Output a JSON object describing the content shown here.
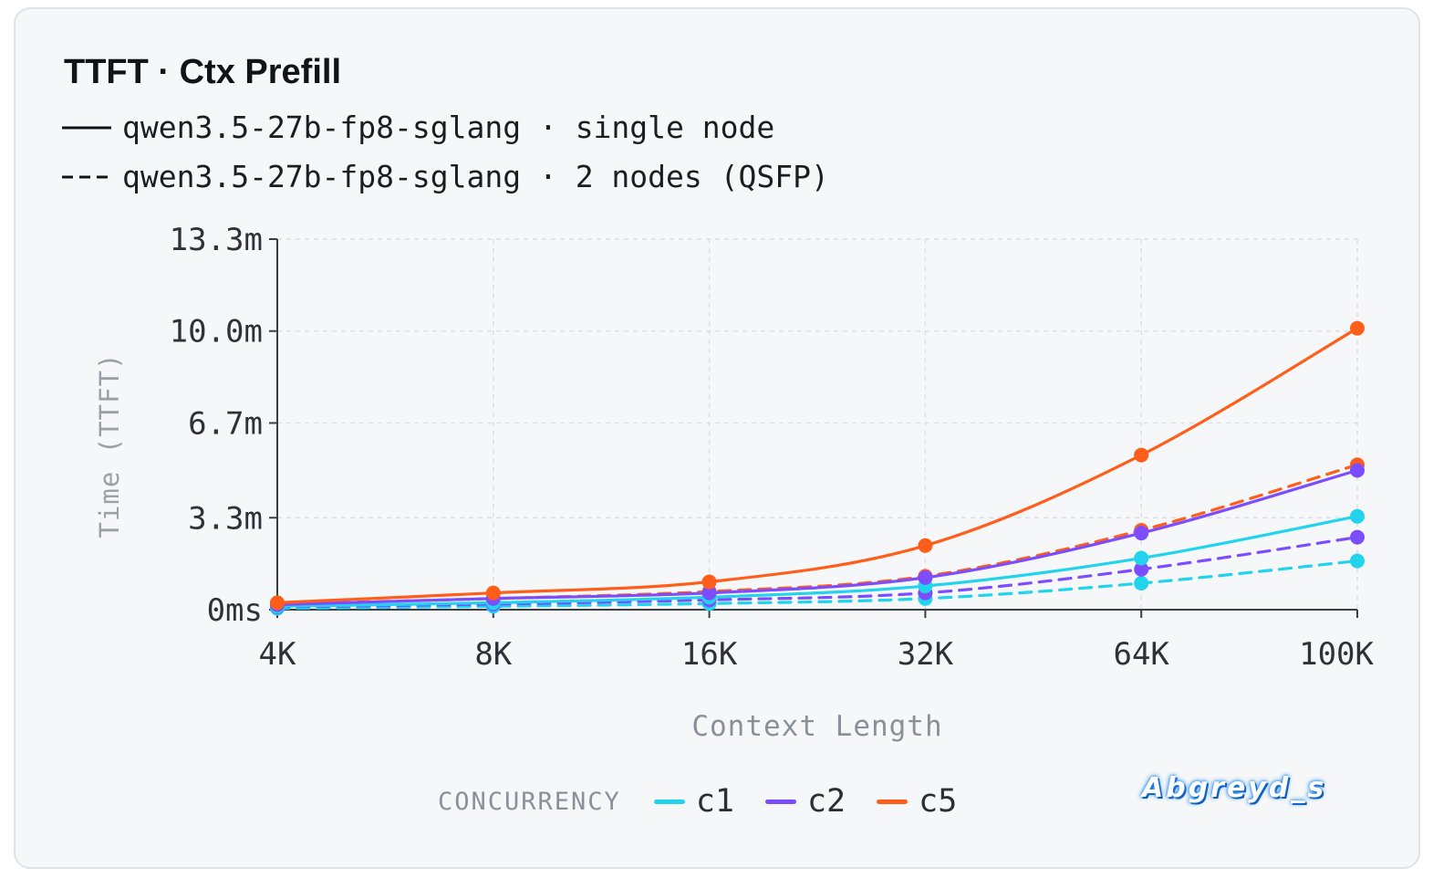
{
  "card": {
    "title": "TTFT · Ctx Prefill",
    "legend_solid_label": "qwen3.5-27b-fp8-sglang · single node",
    "legend_dashed_label": "qwen3.5-27b-fp8-sglang · 2 nodes (QSFP)"
  },
  "concurrency_legend": {
    "title": "CONCURRENCY",
    "items": [
      {
        "label": "c1",
        "color": "#22d3ee"
      },
      {
        "label": "c2",
        "color": "#7c4dff"
      },
      {
        "label": "c5",
        "color": "#ff5e1a"
      }
    ]
  },
  "watermark": "Abgreyd_s",
  "chart_data": {
    "type": "line",
    "title": "TTFT · Ctx Prefill",
    "xlabel": "Context Length",
    "ylabel": "Time (TTFT)",
    "categories": [
      "4K",
      "8K",
      "16K",
      "32K",
      "64K",
      "100K"
    ],
    "y_unit": "minutes",
    "ylim": [
      0,
      13.3
    ],
    "yticks": [
      0,
      3.3,
      6.7,
      10.0,
      13.3
    ],
    "ytick_labels": [
      "0ms",
      "3.3m",
      "6.7m",
      "10.0m",
      "13.3m"
    ],
    "grid": true,
    "series": [
      {
        "concurrency": "c1",
        "deployment": "single node",
        "color": "#22d3ee",
        "dash": false,
        "values": [
          0.12,
          0.25,
          0.45,
          0.85,
          1.85,
          3.35
        ]
      },
      {
        "concurrency": "c2",
        "deployment": "single node",
        "color": "#7c4dff",
        "dash": false,
        "values": [
          0.18,
          0.4,
          0.6,
          1.15,
          2.75,
          5.0
        ]
      },
      {
        "concurrency": "c5",
        "deployment": "single node",
        "color": "#ff5e1a",
        "dash": false,
        "values": [
          0.25,
          0.6,
          1.0,
          2.3,
          5.55,
          10.1
        ]
      },
      {
        "concurrency": "c1",
        "deployment": "2 nodes (QSFP)",
        "color": "#22d3ee",
        "dash": true,
        "values": [
          0.05,
          0.12,
          0.22,
          0.4,
          0.95,
          1.75
        ]
      },
      {
        "concurrency": "c2",
        "deployment": "2 nodes (QSFP)",
        "color": "#7c4dff",
        "dash": true,
        "values": [
          0.1,
          0.2,
          0.35,
          0.6,
          1.45,
          2.6
        ]
      },
      {
        "concurrency": "c5",
        "deployment": "2 nodes (QSFP)",
        "color": "#ff5e1a",
        "dash": true,
        "values": [
          0.2,
          0.4,
          0.65,
          1.2,
          2.85,
          5.2
        ]
      }
    ]
  }
}
